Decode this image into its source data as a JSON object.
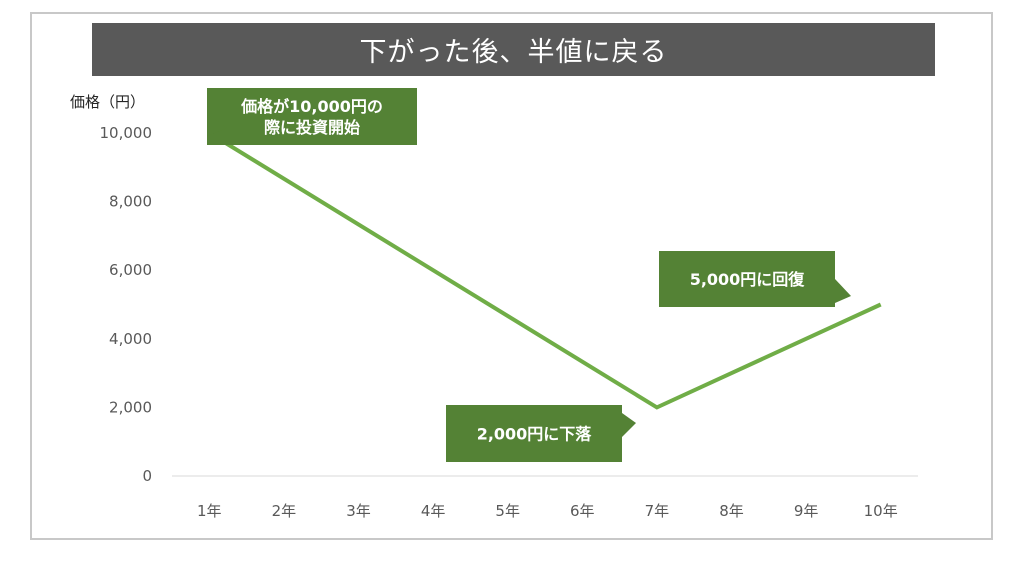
{
  "chart_data": {
    "type": "line",
    "title": "下がった後、半値に戻る",
    "ylabel": "価格（円）",
    "xlabel": "",
    "categories": [
      "1年",
      "2年",
      "3年",
      "4年",
      "5年",
      "6年",
      "7年",
      "8年",
      "9年",
      "10年"
    ],
    "series": [
      {
        "name": "",
        "x": [
          "1年",
          "7年",
          "10年"
        ],
        "values": [
          10000,
          2000,
          5000
        ]
      }
    ],
    "ylim": [
      0,
      10000
    ],
    "yticks": [
      0,
      2000,
      4000,
      6000,
      8000,
      10000
    ],
    "ytick_labels": [
      "0",
      "2,000",
      "4,000",
      "6,000",
      "8,000",
      "10,000"
    ],
    "grid": false,
    "legend": "none",
    "line_color": "#70ad47",
    "annotations": [
      {
        "lines": [
          "価格が10,000円の",
          "際に投資開始"
        ],
        "x": "1年",
        "y": 10000,
        "side": "right"
      },
      {
        "lines": [
          "2,000円に下落"
        ],
        "x": "7年",
        "y": 2000,
        "side": "left"
      },
      {
        "lines": [
          "5,000円に回復"
        ],
        "x": "10年",
        "y": 5000,
        "side": "left"
      }
    ]
  },
  "colors": {
    "title_bg": "#595959",
    "callout_bg": "#548235",
    "axis_line": "#d9d9d9"
  }
}
